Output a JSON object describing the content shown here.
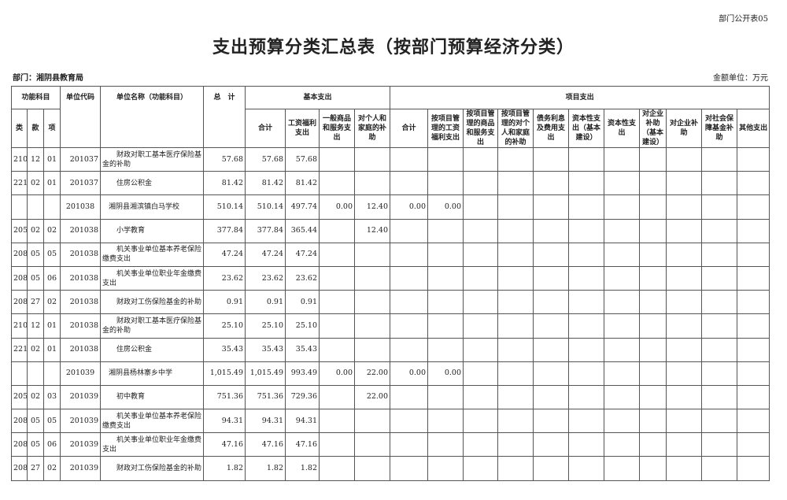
{
  "corner_tag": "部门公开表05",
  "title": "支出预算分类汇总表（按部门预算经济分类）",
  "department": "部门：湘阴县教育局",
  "amount_unit": "金额单位：万元",
  "headers": {
    "func_subject": "功能科目",
    "lei": "类",
    "kuan": "款",
    "xiang": "项",
    "unit_code": "单位代码",
    "unit_name": "单位名称（功能科目）",
    "total": "总　计",
    "basic": "基本支出",
    "project": "项目支出",
    "basic_cols": [
      "合计",
      "工资福利支出",
      "一般商品和服务支出",
      "对个人和家庭的补助"
    ],
    "project_cols": [
      "合计",
      "按项目管理的工资福利支出",
      "按项目管理的商品和服务支出",
      "按项目管理的对个人和家庭的补助",
      "债务利息及费用支出",
      "资本性支出（基本建设）",
      "资本性支出",
      "对企业补助（基本建设）",
      "对企业补助",
      "对社会保障基金补助",
      "其他支出"
    ]
  },
  "rows": [
    {
      "type": "detail",
      "cells": [
        "210",
        "12",
        "01",
        "201037",
        "财政对职工基本医疗保险基金的补助",
        "57.68",
        "57.68",
        "57.68",
        "",
        "",
        "",
        "",
        "",
        "",
        "",
        "",
        "",
        "",
        "",
        "",
        ""
      ]
    },
    {
      "type": "detail",
      "cells": [
        "221",
        "02",
        "01",
        "201037",
        "住房公积金",
        "81.42",
        "81.42",
        "81.42",
        "",
        "",
        "",
        "",
        "",
        "",
        "",
        "",
        "",
        "",
        "",
        "",
        ""
      ]
    },
    {
      "type": "unit",
      "cells": [
        "",
        "",
        "",
        "201038",
        "湘阴县湘滨镇白马学校",
        "510.14",
        "510.14",
        "497.74",
        "0.00",
        "12.40",
        "0.00",
        "0.00",
        "",
        "",
        "",
        "",
        "",
        "",
        "",
        "",
        ""
      ]
    },
    {
      "type": "detail",
      "cells": [
        "205",
        "02",
        "02",
        "201038",
        "小学教育",
        "377.84",
        "377.84",
        "365.44",
        "",
        "12.40",
        "",
        "",
        "",
        "",
        "",
        "",
        "",
        "",
        "",
        "",
        ""
      ]
    },
    {
      "type": "detail",
      "cells": [
        "208",
        "05",
        "05",
        "201038",
        "机关事业单位基本养老保险缴费支出",
        "47.24",
        "47.24",
        "47.24",
        "",
        "",
        "",
        "",
        "",
        "",
        "",
        "",
        "",
        "",
        "",
        "",
        ""
      ]
    },
    {
      "type": "detail",
      "cells": [
        "208",
        "05",
        "06",
        "201038",
        "机关事业单位职业年金缴费支出",
        "23.62",
        "23.62",
        "23.62",
        "",
        "",
        "",
        "",
        "",
        "",
        "",
        "",
        "",
        "",
        "",
        "",
        ""
      ]
    },
    {
      "type": "detail",
      "cells": [
        "208",
        "27",
        "02",
        "201038",
        "财政对工伤保险基金的补助",
        "0.91",
        "0.91",
        "0.91",
        "",
        "",
        "",
        "",
        "",
        "",
        "",
        "",
        "",
        "",
        "",
        "",
        ""
      ]
    },
    {
      "type": "detail",
      "cells": [
        "210",
        "12",
        "01",
        "201038",
        "财政对职工基本医疗保险基金的补助",
        "25.10",
        "25.10",
        "25.10",
        "",
        "",
        "",
        "",
        "",
        "",
        "",
        "",
        "",
        "",
        "",
        "",
        ""
      ]
    },
    {
      "type": "detail",
      "cells": [
        "221",
        "02",
        "01",
        "201038",
        "住房公积金",
        "35.43",
        "35.43",
        "35.43",
        "",
        "",
        "",
        "",
        "",
        "",
        "",
        "",
        "",
        "",
        "",
        "",
        ""
      ]
    },
    {
      "type": "unit",
      "cells": [
        "",
        "",
        "",
        "201039",
        "湘阴县杨林寨乡中学",
        "1,015.49",
        "1,015.49",
        "993.49",
        "0.00",
        "22.00",
        "0.00",
        "0.00",
        "",
        "",
        "",
        "",
        "",
        "",
        "",
        "",
        ""
      ]
    },
    {
      "type": "detail",
      "cells": [
        "205",
        "02",
        "03",
        "201039",
        "初中教育",
        "751.36",
        "751.36",
        "729.36",
        "",
        "22.00",
        "",
        "",
        "",
        "",
        "",
        "",
        "",
        "",
        "",
        "",
        ""
      ]
    },
    {
      "type": "detail",
      "cells": [
        "208",
        "05",
        "05",
        "201039",
        "机关事业单位基本养老保险缴费支出",
        "94.31",
        "94.31",
        "94.31",
        "",
        "",
        "",
        "",
        "",
        "",
        "",
        "",
        "",
        "",
        "",
        "",
        ""
      ]
    },
    {
      "type": "detail",
      "cells": [
        "208",
        "05",
        "06",
        "201039",
        "机关事业单位职业年金缴费支出",
        "47.16",
        "47.16",
        "47.16",
        "",
        "",
        "",
        "",
        "",
        "",
        "",
        "",
        "",
        "",
        "",
        "",
        ""
      ]
    },
    {
      "type": "detail",
      "cells": [
        "208",
        "27",
        "02",
        "201039",
        "财政对工伤保险基金的补助",
        "1.82",
        "1.82",
        "1.82",
        "",
        "",
        "",
        "",
        "",
        "",
        "",
        "",
        "",
        "",
        "",
        "",
        ""
      ]
    }
  ]
}
